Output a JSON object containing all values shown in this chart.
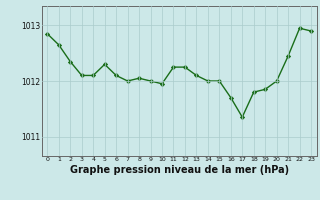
{
  "x": [
    0,
    1,
    2,
    3,
    4,
    5,
    6,
    7,
    8,
    9,
    10,
    11,
    12,
    13,
    14,
    15,
    16,
    17,
    18,
    19,
    20,
    21,
    22,
    23
  ],
  "y": [
    1012.85,
    1012.65,
    1012.35,
    1012.1,
    1012.1,
    1012.3,
    1012.1,
    1012.0,
    1012.05,
    1012.0,
    1011.95,
    1012.25,
    1012.25,
    1012.1,
    1012.0,
    1012.0,
    1011.7,
    1011.35,
    1011.8,
    1011.85,
    1012.0,
    1012.45,
    1012.95,
    1012.9
  ],
  "line_color": "#1a6e1a",
  "marker": "D",
  "markersize": 2.2,
  "linewidth": 1.0,
  "background_color": "#cce8e8",
  "grid_color": "#aacccc",
  "axis_color": "#666666",
  "title": "Graphe pression niveau de la mer (hPa)",
  "title_fontsize": 7,
  "title_color": "#111111",
  "yticks": [
    1011,
    1012,
    1013
  ],
  "ylim": [
    1010.65,
    1013.35
  ],
  "xlim": [
    -0.5,
    23.5
  ],
  "xtick_labels": [
    "0",
    "1",
    "2",
    "3",
    "4",
    "5",
    "6",
    "7",
    "8",
    "9",
    "10",
    "11",
    "12",
    "13",
    "14",
    "15",
    "16",
    "17",
    "18",
    "19",
    "20",
    "21",
    "22",
    "23"
  ]
}
